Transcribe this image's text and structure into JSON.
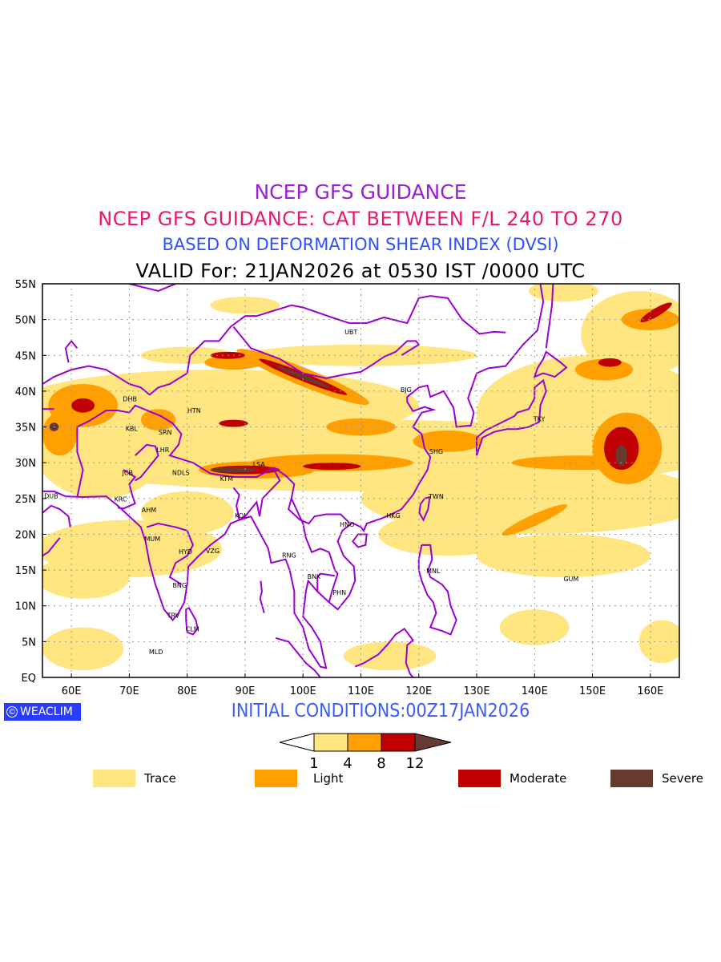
{
  "titles": {
    "line1": "NCEP GFS GUIDANCE",
    "line2": "NCEP GFS GUIDANCE: CAT BETWEEN F/L 240 TO 270",
    "line3": "BASED ON DEFORMATION SHEAR INDEX (DVSI)",
    "line4": "VALID For: 21JAN2026 at 0530 IST /0000 UTC"
  },
  "axes": {
    "lat_labels": [
      "EQ",
      "5N",
      "10N",
      "15N",
      "20N",
      "25N",
      "30N",
      "35N",
      "40N",
      "45N",
      "50N",
      "55N"
    ],
    "lon_labels": [
      "60E",
      "70E",
      "80E",
      "90E",
      "100E",
      "110E",
      "120E",
      "130E",
      "140E",
      "150E",
      "160E"
    ],
    "lon_range": [
      55,
      165
    ],
    "lat_range": [
      0,
      55
    ]
  },
  "cities": [
    {
      "code": "DHB",
      "lon": 70.1,
      "lat": 38.9
    },
    {
      "code": "KBL",
      "lon": 70.4,
      "lat": 34.8
    },
    {
      "code": "SRN",
      "lon": 76.2,
      "lat": 34.3
    },
    {
      "code": "LHR",
      "lon": 75.8,
      "lat": 31.8
    },
    {
      "code": "HTN",
      "lon": 81.2,
      "lat": 37.3
    },
    {
      "code": "JCB",
      "lon": 69.7,
      "lat": 28.6
    },
    {
      "code": "NDLS",
      "lon": 78.9,
      "lat": 28.6
    },
    {
      "code": "KTM",
      "lon": 86.8,
      "lat": 27.8
    },
    {
      "code": "LSA",
      "lon": 92.4,
      "lat": 29.8
    },
    {
      "code": "DUB",
      "lon": 56.5,
      "lat": 25.4
    },
    {
      "code": "KRC",
      "lon": 68.5,
      "lat": 24.9
    },
    {
      "code": "AHM",
      "lon": 73.4,
      "lat": 23.4
    },
    {
      "code": "KOL",
      "lon": 89.3,
      "lat": 22.6
    },
    {
      "code": "MUM",
      "lon": 74.0,
      "lat": 19.4
    },
    {
      "code": "HYD",
      "lon": 79.7,
      "lat": 17.6
    },
    {
      "code": "VZG",
      "lon": 84.4,
      "lat": 17.7
    },
    {
      "code": "BNG",
      "lon": 78.7,
      "lat": 12.9
    },
    {
      "code": "TRV",
      "lon": 77.6,
      "lat": 8.7
    },
    {
      "code": "CLM",
      "lon": 80.9,
      "lat": 6.8
    },
    {
      "code": "MLD",
      "lon": 74.6,
      "lat": 3.6
    },
    {
      "code": "UBT",
      "lon": 108.3,
      "lat": 48.3
    },
    {
      "code": "BJG",
      "lon": 117.8,
      "lat": 40.2
    },
    {
      "code": "TKY",
      "lon": 140.8,
      "lat": 36.1
    },
    {
      "code": "SHG",
      "lon": 123.0,
      "lat": 31.6
    },
    {
      "code": "TWN",
      "lon": 123.0,
      "lat": 25.3
    },
    {
      "code": "HKG",
      "lon": 115.6,
      "lat": 22.6
    },
    {
      "code": "HNO",
      "lon": 107.6,
      "lat": 21.4
    },
    {
      "code": "RNG",
      "lon": 97.6,
      "lat": 17.1
    },
    {
      "code": "BNK",
      "lon": 101.9,
      "lat": 14.1
    },
    {
      "code": "PHN",
      "lon": 106.3,
      "lat": 11.9
    },
    {
      "code": "MNL",
      "lon": 122.5,
      "lat": 14.9
    },
    {
      "code": "GUM",
      "lon": 146.3,
      "lat": 13.8
    }
  ],
  "brand": {
    "symbol": "©",
    "name": "WEACLIM"
  },
  "initial_conditions": "INITIAL CONDITIONS:00Z17JAN2026",
  "colorbar": {
    "levels": [
      "1",
      "4",
      "8",
      "12"
    ],
    "colors": {
      "trace": "#ffe680",
      "light": "#ffa000",
      "moderate": "#c00000",
      "severe": "#663a30",
      "coast": "#9b00d0"
    }
  },
  "legend": [
    {
      "label": "Trace",
      "color": "#ffe680"
    },
    {
      "label": "Light",
      "color": "#ffa000"
    },
    {
      "label": "Moderate",
      "color": "#c00000"
    },
    {
      "label": "Severe",
      "color": "#663a30"
    }
  ]
}
